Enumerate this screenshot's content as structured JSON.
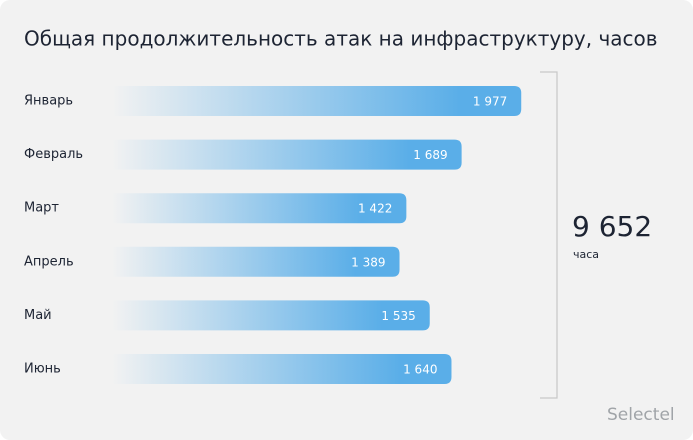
{
  "chart_data": {
    "type": "bar",
    "orientation": "horizontal",
    "title": "Общая продолжительность атак на инфраструктуру, часов",
    "categories": [
      "Январь",
      "Февраль",
      "Март",
      "Апрель",
      "Май",
      "Июнь"
    ],
    "values": [
      1977,
      1689,
      1422,
      1389,
      1535,
      1640
    ],
    "value_labels": [
      "1 977",
      "1 689",
      "1 422",
      "1 389",
      "1 535",
      "1 640"
    ],
    "color": "#5aaee8",
    "annotations": {
      "total": "9 652",
      "unit": "часа"
    },
    "brand": "Selectel"
  }
}
